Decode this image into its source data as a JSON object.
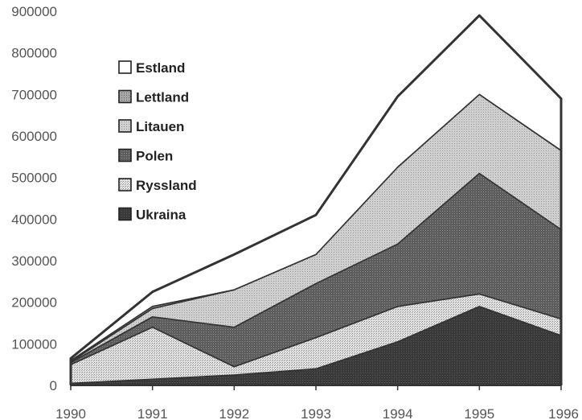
{
  "chart_data": {
    "type": "area",
    "stacked": true,
    "x": [
      1990,
      1991,
      1992,
      1993,
      1994,
      1995,
      1996
    ],
    "ylim": [
      0,
      900000
    ],
    "yticks": [
      0,
      100000,
      200000,
      300000,
      400000,
      500000,
      600000,
      700000,
      800000,
      900000
    ],
    "ytick_labels": [
      "0",
      "100000",
      "200000",
      "300000",
      "400000",
      "500000",
      "600000",
      "700000",
      "800000",
      "900000"
    ],
    "xtick_labels": [
      "1990",
      "1991",
      "1992",
      "1993",
      "1994",
      "1995",
      "1996"
    ],
    "grid": false,
    "legend_position": "top-left",
    "series": [
      {
        "name": "Ukraina",
        "values": [
          5000,
          15000,
          25000,
          40000,
          105000,
          190000,
          120000
        ],
        "pattern": "darkest"
      },
      {
        "name": "Ryssland",
        "values": [
          45000,
          125000,
          20000,
          75000,
          85000,
          30000,
          40000
        ],
        "pattern": "light-dots"
      },
      {
        "name": "Polen",
        "values": [
          5000,
          25000,
          95000,
          130000,
          150000,
          290000,
          215000
        ],
        "pattern": "dark"
      },
      {
        "name": "Litauen",
        "values": [
          2000,
          20000,
          90000,
          70000,
          185000,
          190000,
          190000
        ],
        "pattern": "light-gray"
      },
      {
        "name": "Lettland",
        "values": [
          3000,
          5000,
          0,
          0,
          0,
          0,
          0
        ],
        "pattern": "medium"
      },
      {
        "name": "Estland",
        "values": [
          5000,
          35000,
          85000,
          95000,
          170000,
          190000,
          125000
        ],
        "pattern": "white"
      }
    ],
    "legend_order": [
      "Estland",
      "Lettland",
      "Litauen",
      "Polen",
      "Ryssland",
      "Ukraina"
    ]
  }
}
